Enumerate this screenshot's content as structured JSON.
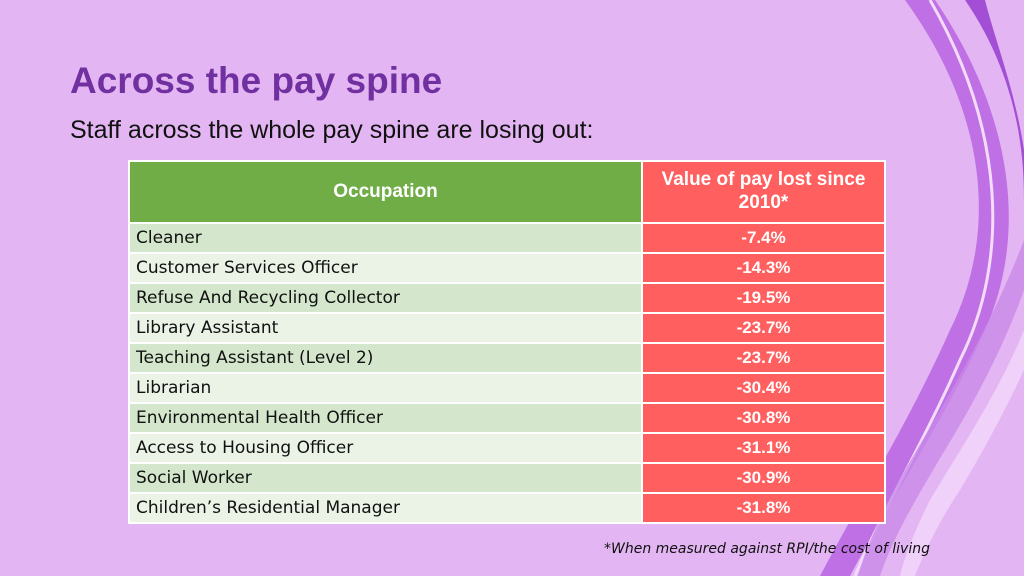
{
  "slide": {
    "title": "Across the pay spine",
    "subtitle": "Staff across the whole pay spine are losing out:",
    "footnote": "*When measured against RPI/the cost of living"
  },
  "table": {
    "headers": [
      "Occupation",
      "Value of pay lost since 2010*"
    ],
    "rows": [
      [
        "Cleaner",
        "-7.4%"
      ],
      [
        "Customer Services Officer",
        "-14.3%"
      ],
      [
        "Refuse And Recycling Collector",
        "-19.5%"
      ],
      [
        "Library Assistant",
        "-23.7%"
      ],
      [
        "Teaching Assistant (Level 2)",
        "-23.7%"
      ],
      [
        "Librarian",
        "-30.4%"
      ],
      [
        "Environmental Health Officer",
        "-30.8%"
      ],
      [
        "Access to Housing Officer",
        "-31.1%"
      ],
      [
        "Social Worker",
        "-30.9%"
      ],
      [
        "Children’s Residential Manager",
        "-31.8%"
      ]
    ]
  },
  "colors": {
    "background": "#e3b6f3",
    "title": "#7030a0",
    "header_occupation": "#70ad47",
    "value_column": "#ff5f5f",
    "row_band_dark": "#d4e7cc",
    "row_band_light": "#eaf3e6"
  }
}
